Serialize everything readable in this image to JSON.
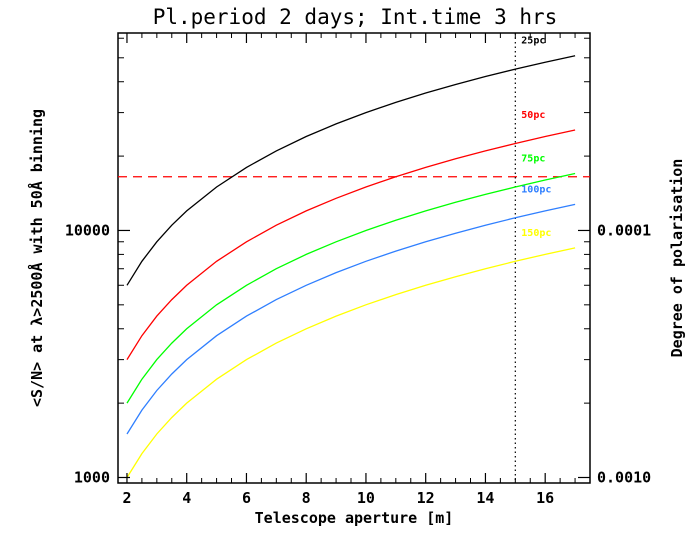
{
  "chart_data": {
    "type": "line",
    "title": "Pl.period 2 days; Int.time 3 hrs",
    "xlabel": "Telescope aperture [m]",
    "ylabel": "<S/N> at λ>2500Å with 50Å binning",
    "y2label": "Degree of polarisation",
    "xlim": [
      1.7,
      17.5
    ],
    "ylim": [
      950,
      63000
    ],
    "yscale": "log",
    "x_ticks": [
      2,
      4,
      6,
      8,
      10,
      12,
      14,
      16
    ],
    "x_tick_labels": [
      "2",
      "4",
      "6",
      "8",
      "10",
      "12",
      "14",
      "16"
    ],
    "y_ticks": [
      1000,
      10000
    ],
    "y_tick_labels": [
      "1000",
      "10000"
    ],
    "y2_ticks": [
      0.001,
      0.0001
    ],
    "y2_tick_labels": [
      "0.0010",
      "0.0001"
    ],
    "x": [
      2,
      2.5,
      3,
      3.5,
      4,
      5,
      6,
      7,
      8,
      9,
      10,
      11,
      12,
      13,
      14,
      15,
      16,
      17
    ],
    "series": [
      {
        "name": "25pc",
        "color": "#000000",
        "values": [
          6000,
          7500,
          9000,
          10500,
          12000,
          15000,
          18000,
          21000,
          24000,
          27000,
          30000,
          33000,
          36000,
          39000,
          42000,
          45000,
          48000,
          51000
        ]
      },
      {
        "name": "50pc",
        "color": "#ff0000",
        "values": [
          3000,
          3750,
          4500,
          5250,
          6000,
          7500,
          9000,
          10500,
          12000,
          13500,
          15000,
          16500,
          18000,
          19500,
          21000,
          22500,
          24000,
          25500
        ]
      },
      {
        "name": "75pc",
        "color": "#00ff00",
        "values": [
          2000,
          2500,
          3000,
          3500,
          4000,
          5000,
          6000,
          7000,
          8000,
          9000,
          10000,
          11000,
          12000,
          13000,
          14000,
          15000,
          16000,
          17000
        ]
      },
      {
        "name": "100pc",
        "color": "#2f7fff",
        "values": [
          1500,
          1875,
          2250,
          2625,
          3000,
          3750,
          4500,
          5250,
          6000,
          6750,
          7500,
          8250,
          9000,
          9750,
          10500,
          11250,
          12000,
          12750
        ]
      },
      {
        "name": "150pc",
        "color": "#ffff00",
        "values": [
          1000,
          1250,
          1500,
          1750,
          2000,
          2500,
          3000,
          3500,
          4000,
          4500,
          5000,
          5500,
          6000,
          6500,
          7000,
          7500,
          8000,
          8500
        ]
      }
    ],
    "reference_lines": [
      {
        "orientation": "horizontal",
        "value": 16500,
        "color": "#ff0000",
        "style": "dashed"
      },
      {
        "orientation": "vertical",
        "value": 15,
        "color": "#000000",
        "style": "dotted"
      }
    ],
    "grid": false,
    "legend": "inline labels at right end of curves"
  }
}
